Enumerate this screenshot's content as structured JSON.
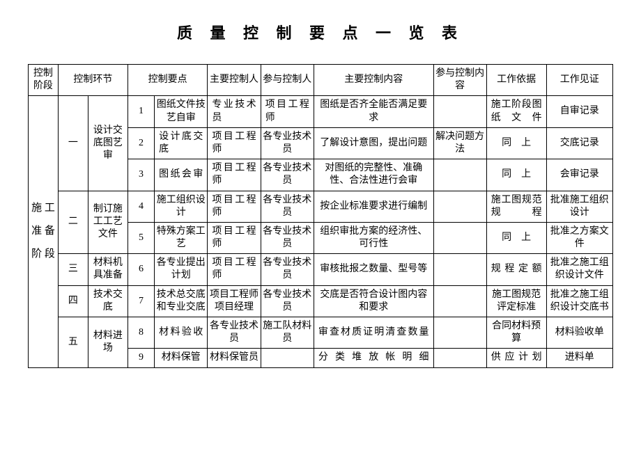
{
  "title": "质 量 控 制 要 点 一 览 表",
  "headers": {
    "stage": "控制阶段",
    "link": "控制环节",
    "point": "控制要点",
    "mainPerson": "主要控制人",
    "partPerson": "参与控制人",
    "mainContent": "主要控制内容",
    "partContent": "参与控制内容",
    "basis": "工作依据",
    "evidence": "工作见证"
  },
  "stage": "施 工 准 备 阶 段",
  "groups": [
    {
      "order": "一",
      "link": "设计交底图艺审",
      "rows": [
        {
          "num": "1",
          "point": "图纸文件技艺自审",
          "mainP": "专业技术员",
          "partP": "项目工程师",
          "content": "图纸是否齐全能否满足要求",
          "partC": "",
          "basis": "施工阶段图纸文件",
          "evid": "自审记录"
        },
        {
          "num": "2",
          "point": "设计底交底",
          "mainP": "项目工程师",
          "partP": "各专业技术员",
          "content": "了解设计意图，提出问题",
          "partC": "解决问题方法",
          "basis": "同　上",
          "evid": "交底记录"
        },
        {
          "num": "3",
          "point": "图纸会审",
          "mainP": "项目工程师",
          "partP": "各专业技术员",
          "content": "对图纸的完整性、准确性、合法性进行会审",
          "partC": "",
          "basis": "同　上",
          "evid": "会审记录"
        }
      ]
    },
    {
      "order": "二",
      "link": "制订施工工艺文件",
      "rows": [
        {
          "num": "4",
          "point": "施工组织设计",
          "mainP": "项目工程师",
          "partP": "各专业技术员",
          "content": "按企业标准要求进行编制",
          "partC": "",
          "basis": "施工图规范规程",
          "evid": "批准施工组织设计"
        },
        {
          "num": "5",
          "point": "特殊方案工艺",
          "mainP": "项目工程师",
          "partP": "各专业技术员",
          "content": "组织审批方案的经济性、可行性",
          "partC": "",
          "basis": "同　上",
          "evid": "批准之方案文件"
        }
      ]
    },
    {
      "order": "三",
      "link": "材料机具准备",
      "rows": [
        {
          "num": "6",
          "point": "各专业提出计划",
          "mainP": "项目工程师",
          "partP": "各专业技术员",
          "content": "审核批报之数量、型号等",
          "partC": "",
          "basis": "规程定额",
          "evid": "批准之施工组织设计文件"
        }
      ]
    },
    {
      "order": "四",
      "link": "技术交底",
      "rows": [
        {
          "num": "7",
          "point": "技术总交底和专业交底",
          "mainP": "项目工程师项目经理",
          "partP": "各专业技术员",
          "content": "交底是否符合设计图内容和要求",
          "partC": "",
          "basis": "施工图规范评定标准",
          "evid": "批准之施工组织设计交底书"
        }
      ]
    },
    {
      "order": "五",
      "link": "材料进场",
      "rows": [
        {
          "num": "8",
          "point": "材料验收",
          "mainP": "各专业技术员",
          "partP": "施工队材料员",
          "content": "审查材质证明清查数量",
          "partC": "",
          "basis": "合同材料预算",
          "evid": "材料验收单"
        },
        {
          "num": "9",
          "point": "材料保管",
          "mainP": "材料保管员",
          "partP": "",
          "content": "分类堆放帐明细",
          "partC": "",
          "basis": "供应计划",
          "evid": "进料单"
        }
      ]
    }
  ],
  "style": {
    "bg": "#ffffff",
    "border": "#000000",
    "fontTitle": 22,
    "fontCell": 14
  }
}
